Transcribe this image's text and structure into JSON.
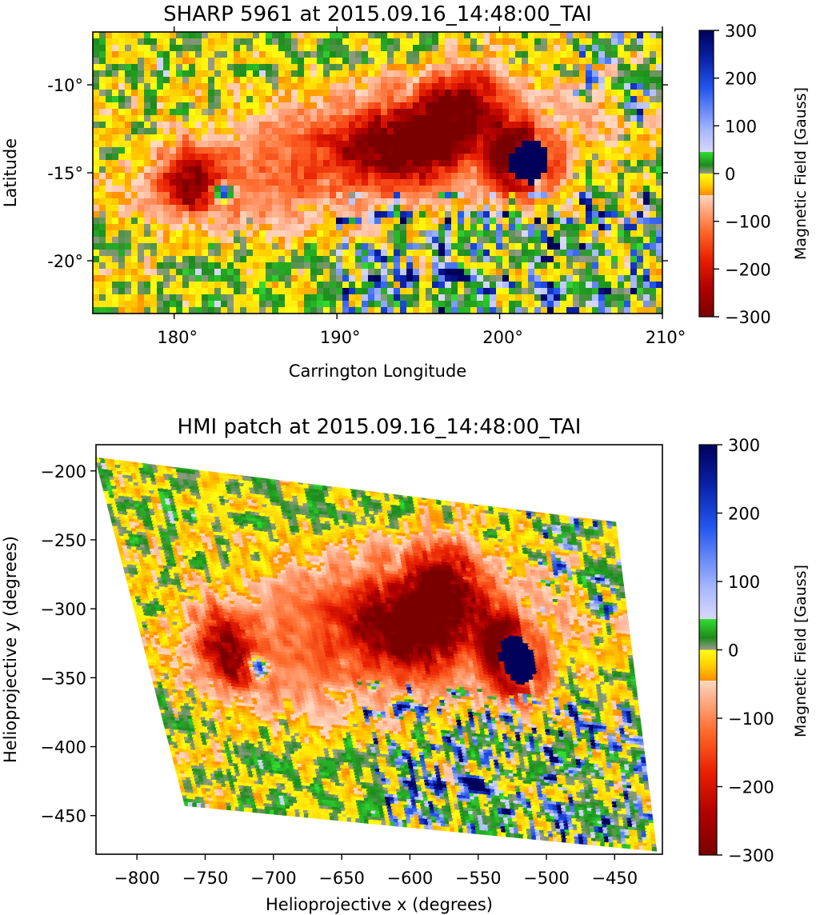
{
  "chart_data": [
    {
      "type": "heatmap",
      "title": "SHARP 5961 at 2015.09.16_14:48:00_TAI",
      "xlabel": "Carrington Longitude",
      "ylabel": "Latitude",
      "xlim": [
        175,
        210
      ],
      "ylim": [
        -23,
        -7
      ],
      "xticks": [
        {
          "value": 180,
          "label": "180°"
        },
        {
          "value": 190,
          "label": "190°"
        },
        {
          "value": 200,
          "label": "200°"
        },
        {
          "value": 210,
          "label": "210°"
        }
      ],
      "yticks": [
        {
          "value": -10,
          "label": "-10°"
        },
        {
          "value": -15,
          "label": "-15°"
        },
        {
          "value": -20,
          "label": "-20°"
        }
      ],
      "features": [
        {
          "name": "positive-sunspot",
          "x": 201.8,
          "y": -14.4,
          "value": 300
        },
        {
          "name": "negative-plage-west",
          "x": 181,
          "y": -15.6,
          "value": -250
        },
        {
          "name": "negative-plage-central",
          "x": 194,
          "y": -13.5,
          "value": -250
        },
        {
          "name": "negative-plage-north",
          "x": 197.5,
          "y": -11.5,
          "value": -280
        },
        {
          "name": "small-positive-pore",
          "x": 183,
          "y": -16.1,
          "value": 220
        }
      ],
      "colorbar": {
        "label": "Magnetic Field [Gauss]",
        "range": [
          -300,
          300
        ],
        "ticks": [
          {
            "value": 300,
            "label": "300"
          },
          {
            "value": 200,
            "label": "200"
          },
          {
            "value": 100,
            "label": "100"
          },
          {
            "value": 0,
            "label": "0"
          },
          {
            "value": -100,
            "label": "−100"
          },
          {
            "value": -200,
            "label": "−200"
          },
          {
            "value": -300,
            "label": "−300"
          }
        ]
      }
    },
    {
      "type": "heatmap",
      "title": "HMI patch at 2015.09.16_14:48:00_TAI",
      "xlabel": "Helioprojective x (degrees)",
      "ylabel": "Helioprojective y (degrees)",
      "xlim": [
        -830,
        -415
      ],
      "ylim": [
        -478,
        -181
      ],
      "patch_corners": [
        [
          -831,
          -190
        ],
        [
          -449,
          -237
        ],
        [
          -419,
          -476
        ],
        [
          -765,
          -443
        ]
      ],
      "xticks": [
        {
          "value": -800,
          "label": "−800"
        },
        {
          "value": -750,
          "label": "−750"
        },
        {
          "value": -700,
          "label": "−700"
        },
        {
          "value": -650,
          "label": "−650"
        },
        {
          "value": -600,
          "label": "−600"
        },
        {
          "value": -550,
          "label": "−550"
        },
        {
          "value": -500,
          "label": "−500"
        },
        {
          "value": -450,
          "label": "−450"
        }
      ],
      "yticks": [
        {
          "value": -200,
          "label": "−200"
        },
        {
          "value": -250,
          "label": "−250"
        },
        {
          "value": -300,
          "label": "−300"
        },
        {
          "value": -350,
          "label": "−350"
        },
        {
          "value": -400,
          "label": "−400"
        },
        {
          "value": -450,
          "label": "−450"
        }
      ],
      "colorbar": {
        "label": "Magnetic Field [Gauss]",
        "range": [
          -300,
          300
        ],
        "ticks": [
          {
            "value": 300,
            "label": "300"
          },
          {
            "value": 200,
            "label": "200"
          },
          {
            "value": 100,
            "label": "100"
          },
          {
            "value": 0,
            "label": "0"
          },
          {
            "value": -100,
            "label": "−100"
          },
          {
            "value": -200,
            "label": "−200"
          },
          {
            "value": -300,
            "label": "−300"
          }
        ]
      }
    }
  ]
}
